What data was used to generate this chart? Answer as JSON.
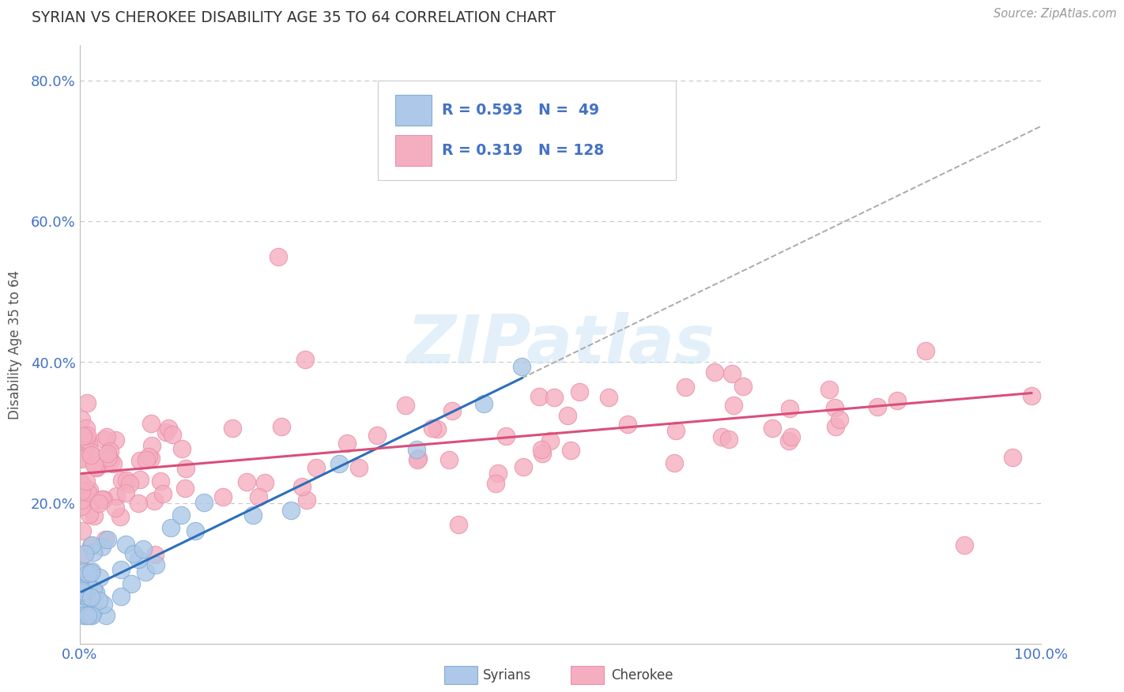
{
  "title": "SYRIAN VS CHEROKEE DISABILITY AGE 35 TO 64 CORRELATION CHART",
  "source": "Source: ZipAtlas.com",
  "ylabel": "Disability Age 35 to 64",
  "xlim": [
    0.0,
    1.0
  ],
  "ylim": [
    0.0,
    0.85
  ],
  "ytick_values": [
    0.2,
    0.4,
    0.6,
    0.8
  ],
  "ytick_labels": [
    "20.0%",
    "40.0%",
    "60.0%",
    "80.0%"
  ],
  "syrian_color": "#adc8e8",
  "cherokee_color": "#f5aec0",
  "syrian_edge_color": "#85aed4",
  "cherokee_edge_color": "#e890aa",
  "syrian_line_color": "#2c6fba",
  "cherokee_line_color": "#d94f7a",
  "dashed_line_color": "#aaaaaa",
  "background_color": "#ffffff",
  "grid_color": "#c8c8c8",
  "title_color": "#333333",
  "source_color": "#999999",
  "tick_color": "#4472c4",
  "watermark_color": "#cde5f5",
  "watermark_alpha": 0.55,
  "legend_text_color_blue": "#4472c4",
  "legend_text_color_pink": "#d94f7a"
}
